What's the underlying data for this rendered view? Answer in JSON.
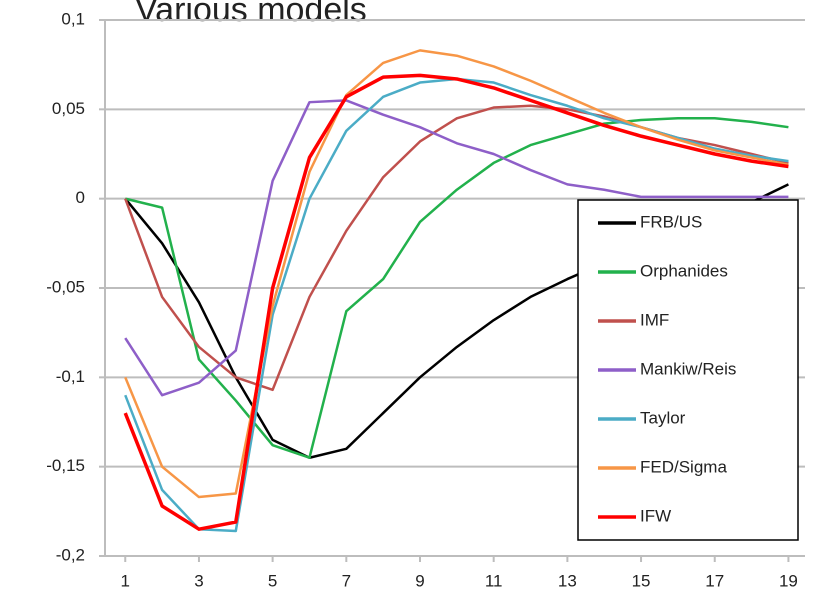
{
  "chart_data": {
    "type": "line",
    "title": "Various models",
    "x": [
      1,
      2,
      3,
      4,
      5,
      6,
      7,
      8,
      9,
      10,
      11,
      12,
      13,
      14,
      15,
      16,
      17,
      18,
      19
    ],
    "xlim": [
      0.45,
      19.45
    ],
    "xticks": [
      1,
      3,
      5,
      7,
      9,
      11,
      13,
      15,
      17,
      19
    ],
    "ylim": [
      -0.2,
      0.1
    ],
    "yticks": [
      {
        "value": -0.2,
        "label": "-0,2"
      },
      {
        "value": -0.15,
        "label": "-0,15"
      },
      {
        "value": -0.1,
        "label": "-0,1"
      },
      {
        "value": -0.05,
        "label": "-0,05"
      },
      0,
      {
        "value": 0.05,
        "label": "0,05"
      },
      {
        "value": 0.1,
        "label": "0,1"
      }
    ],
    "grid": true,
    "legend": "lower right",
    "series": [
      {
        "name": "FRB/US",
        "color": "#000000",
        "values": [
          0,
          -0.025,
          -0.058,
          -0.1,
          -0.135,
          -0.145,
          -0.14,
          -0.12,
          -0.1,
          -0.083,
          -0.068,
          -0.055,
          -0.045,
          -0.036,
          -0.027,
          -0.018,
          -0.01,
          -0.002,
          0.008
        ]
      },
      {
        "name": "Orphanides",
        "color": "#22b14c",
        "values": [
          0,
          -0.005,
          -0.09,
          -0.113,
          -0.138,
          -0.145,
          -0.063,
          -0.045,
          -0.013,
          0.005,
          0.02,
          0.03,
          0.036,
          0.042,
          0.044,
          0.045,
          0.045,
          0.043,
          0.04
        ]
      },
      {
        "name": "IMF",
        "color": "#c0504d",
        "values": [
          0,
          -0.055,
          -0.083,
          -0.1,
          -0.107,
          -0.055,
          -0.018,
          0.012,
          0.032,
          0.045,
          0.051,
          0.052,
          0.05,
          0.046,
          0.04,
          0.034,
          0.03,
          0.025,
          0.02
        ]
      },
      {
        "name": "Mankiw/Reis",
        "color": "#8e5fc8",
        "values": [
          -0.078,
          -0.11,
          -0.103,
          -0.085,
          0.01,
          0.054,
          0.055,
          0.047,
          0.04,
          0.031,
          0.025,
          0.016,
          0.008,
          0.005,
          0.001,
          0.001,
          0.001,
          0.001,
          0.001
        ]
      },
      {
        "name": "Taylor",
        "color": "#4bacc6",
        "values": [
          -0.11,
          -0.163,
          -0.185,
          -0.186,
          -0.065,
          0,
          0.038,
          0.057,
          0.065,
          0.067,
          0.065,
          0.058,
          0.052,
          0.045,
          0.04,
          0.034,
          0.028,
          0.024,
          0.021
        ]
      },
      {
        "name": "FED/Sigma",
        "color": "#f79646",
        "values": [
          -0.1,
          -0.15,
          -0.167,
          -0.165,
          -0.06,
          0.015,
          0.058,
          0.076,
          0.083,
          0.08,
          0.074,
          0.066,
          0.057,
          0.048,
          0.04,
          0.033,
          0.027,
          0.023,
          0.019
        ]
      },
      {
        "name": "IFW",
        "color": "#ff0000",
        "values": [
          -0.12,
          -0.172,
          -0.185,
          -0.181,
          -0.05,
          0.023,
          0.057,
          0.068,
          0.069,
          0.067,
          0.062,
          0.055,
          0.048,
          0.041,
          0.035,
          0.03,
          0.025,
          0.021,
          0.018
        ]
      }
    ]
  }
}
